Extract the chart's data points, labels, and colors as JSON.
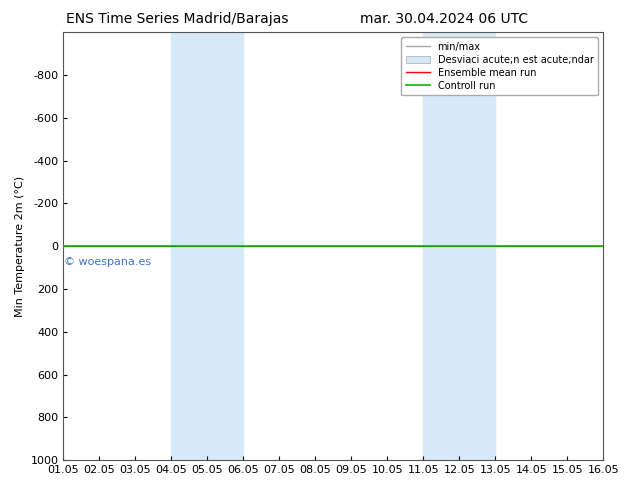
{
  "title_left": "ENS Time Series Madrid/Barajas",
  "title_right": "mar. 30.04.2024 06 UTC",
  "ylabel": "Min Temperature 2m (°C)",
  "ylim_top": -1000,
  "ylim_bottom": 1000,
  "yticks": [
    -800,
    -600,
    -400,
    -200,
    0,
    200,
    400,
    600,
    800,
    1000
  ],
  "xlim": [
    0,
    15
  ],
  "xtick_labels": [
    "01.05",
    "02.05",
    "03.05",
    "04.05",
    "05.05",
    "06.05",
    "07.05",
    "08.05",
    "09.05",
    "10.05",
    "11.05",
    "12.05",
    "13.05",
    "14.05",
    "15.05",
    "16.05"
  ],
  "xtick_positions": [
    0,
    1,
    2,
    3,
    4,
    5,
    6,
    7,
    8,
    9,
    10,
    11,
    12,
    13,
    14,
    15
  ],
  "shaded_regions": [
    {
      "xmin": 3,
      "xmax": 5,
      "color": "#d6e9f8"
    },
    {
      "xmin": 10,
      "xmax": 12,
      "color": "#d6e9f8"
    }
  ],
  "hline_y": 0,
  "watermark": "© woespana.es",
  "watermark_color": "#4472c4",
  "legend_entries": [
    "min/max",
    "Desviaci acute;n est acute;ndar",
    "Ensemble mean run",
    "Controll run"
  ],
  "legend_colors_line": [
    "#aaaaaa",
    "#cccccc",
    "#ff0000",
    "#00aa00"
  ],
  "background_color": "#ffffff",
  "title_fontsize": 10,
  "axis_fontsize": 8,
  "tick_fontsize": 8
}
